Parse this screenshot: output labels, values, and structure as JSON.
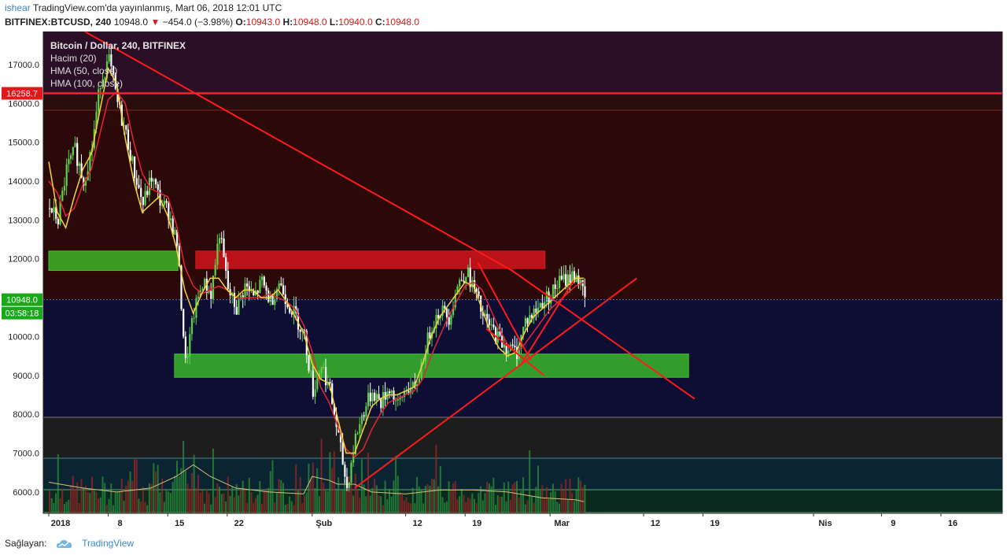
{
  "header": {
    "author": "ishear",
    "published": "TradingView.com'da yayınlanmış, Mart 06, 2018 12:01 UTC",
    "symbol": "BITFINEX:BTCUSD, 240",
    "last": "10948.0",
    "change": "−454.0 (−3.98%)",
    "o_label": "O:",
    "o_value": "10943.0",
    "h_label": "H:",
    "h_value": "10948.0",
    "l_label": "L:",
    "l_value": "10940.0",
    "c_label": "C:",
    "c_value": "10948.0"
  },
  "footer": {
    "label": "Sağlayan:",
    "brand": "TradingView"
  },
  "legend": {
    "title": "Bitcoin / Dollar, 240, BITFINEX",
    "volume": "Hacim (20)",
    "hma50": "HMA (50, close)",
    "hma100": "HMA (100, close)"
  },
  "colors": {
    "up": "#5fd04a",
    "down": "#ffffff",
    "hma50": "#f5d33a",
    "hma100": "#e32636",
    "trend": "#ff1a1a",
    "green_zone": "#3ec12b",
    "red_zone": "#e0141e"
  },
  "chart_data": {
    "type": "line",
    "title": "Bitcoin / Dollar, 240, BITFINEX",
    "xlabel": "",
    "ylabel": "",
    "ylim": [
      5450,
      17850
    ],
    "y_ticks": [
      "6000.0",
      "7000.0",
      "8000.0",
      "9000.0",
      "10000.0",
      "11000.0",
      "12000.0",
      "13000.0",
      "14000.0",
      "15000.0",
      "16000.0",
      "17000.0"
    ],
    "x_ticks": [
      {
        "label": "2018",
        "x": 0
      },
      {
        "label": "8",
        "x": 7
      },
      {
        "label": "15",
        "x": 14
      },
      {
        "label": "22",
        "x": 21
      },
      {
        "label": "Şub",
        "x": 31
      },
      {
        "label": "12",
        "x": 42
      },
      {
        "label": "19",
        "x": 49
      },
      {
        "label": "Mar",
        "x": 59
      },
      {
        "label": "12",
        "x": 70
      },
      {
        "label": "19",
        "x": 77
      },
      {
        "label": "Nis",
        "x": 90
      },
      {
        "label": "9",
        "x": 98
      },
      {
        "label": "16",
        "x": 105
      }
    ],
    "price_keypoints": [
      [
        0,
        13300
      ],
      [
        1,
        13000
      ],
      [
        2,
        14300
      ],
      [
        3,
        14800
      ],
      [
        4,
        14000
      ],
      [
        5,
        14900
      ],
      [
        6,
        16600
      ],
      [
        7,
        17100
      ],
      [
        8,
        16000
      ],
      [
        9,
        15200
      ],
      [
        10,
        14200
      ],
      [
        11,
        13400
      ],
      [
        12,
        14100
      ],
      [
        13,
        13500
      ],
      [
        14,
        13200
      ],
      [
        15,
        12400
      ],
      [
        16,
        9300
      ],
      [
        17,
        10600
      ],
      [
        18,
        11400
      ],
      [
        19,
        11100
      ],
      [
        20,
        12700
      ],
      [
        21,
        11200
      ],
      [
        22,
        10700
      ],
      [
        23,
        11300
      ],
      [
        24,
        11000
      ],
      [
        25,
        11400
      ],
      [
        26,
        10900
      ],
      [
        27,
        11400
      ],
      [
        28,
        10900
      ],
      [
        29,
        10500
      ],
      [
        30,
        10000
      ],
      [
        31,
        8600
      ],
      [
        32,
        9300
      ],
      [
        33,
        8600
      ],
      [
        34,
        7400
      ],
      [
        35,
        6100
      ],
      [
        36,
        7400
      ],
      [
        37,
        8100
      ],
      [
        38,
        8600
      ],
      [
        39,
        8300
      ],
      [
        40,
        8700
      ],
      [
        41,
        8200
      ],
      [
        42,
        8700
      ],
      [
        43,
        8600
      ],
      [
        44,
        9500
      ],
      [
        45,
        10300
      ],
      [
        46,
        10700
      ],
      [
        47,
        10500
      ],
      [
        48,
        11300
      ],
      [
        49,
        11700
      ],
      [
        50,
        11200
      ],
      [
        51,
        10500
      ],
      [
        52,
        10200
      ],
      [
        53,
        9900
      ],
      [
        54,
        9700
      ],
      [
        55,
        9600
      ],
      [
        56,
        10400
      ],
      [
        57,
        10600
      ],
      [
        58,
        10900
      ],
      [
        59,
        11100
      ],
      [
        60,
        11400
      ],
      [
        61,
        11500
      ],
      [
        62,
        11600
      ],
      [
        63,
        10948
      ]
    ],
    "hma50_keypoints": [
      [
        0,
        14500
      ],
      [
        1,
        13200
      ],
      [
        2,
        12800
      ],
      [
        3,
        13600
      ],
      [
        4,
        14300
      ],
      [
        5,
        14700
      ],
      [
        6,
        15800
      ],
      [
        7,
        16900
      ],
      [
        8,
        16500
      ],
      [
        9,
        15100
      ],
      [
        10,
        14000
      ],
      [
        11,
        13200
      ],
      [
        12,
        13400
      ],
      [
        13,
        13600
      ],
      [
        14,
        13100
      ],
      [
        15,
        12300
      ],
      [
        16,
        11200
      ],
      [
        17,
        10600
      ],
      [
        18,
        11100
      ],
      [
        19,
        11500
      ],
      [
        20,
        11500
      ],
      [
        21,
        11200
      ],
      [
        22,
        11000
      ],
      [
        23,
        11200
      ],
      [
        24,
        11200
      ],
      [
        25,
        11000
      ],
      [
        26,
        11000
      ],
      [
        27,
        11200
      ],
      [
        28,
        10900
      ],
      [
        29,
        10500
      ],
      [
        30,
        10100
      ],
      [
        31,
        9300
      ],
      [
        32,
        8900
      ],
      [
        33,
        8800
      ],
      [
        34,
        7900
      ],
      [
        35,
        7000
      ],
      [
        36,
        7000
      ],
      [
        37,
        7600
      ],
      [
        38,
        8200
      ],
      [
        39,
        8400
      ],
      [
        40,
        8500
      ],
      [
        41,
        8500
      ],
      [
        42,
        8600
      ],
      [
        43,
        8700
      ],
      [
        44,
        9300
      ],
      [
        45,
        10000
      ],
      [
        46,
        10500
      ],
      [
        47,
        10800
      ],
      [
        48,
        11100
      ],
      [
        49,
        11400
      ],
      [
        50,
        11300
      ],
      [
        51,
        10700
      ],
      [
        52,
        10100
      ],
      [
        53,
        9700
      ],
      [
        54,
        9500
      ],
      [
        55,
        9600
      ],
      [
        56,
        10100
      ],
      [
        57,
        10500
      ],
      [
        58,
        10700
      ],
      [
        59,
        10900
      ],
      [
        60,
        11100
      ],
      [
        61,
        11300
      ],
      [
        62,
        11500
      ],
      [
        63,
        11500
      ]
    ],
    "hma100_keypoints": [
      [
        0,
        14000
      ],
      [
        1,
        13700
      ],
      [
        2,
        13100
      ],
      [
        3,
        13300
      ],
      [
        4,
        13900
      ],
      [
        5,
        14300
      ],
      [
        6,
        15200
      ],
      [
        7,
        16100
      ],
      [
        8,
        16300
      ],
      [
        9,
        16000
      ],
      [
        10,
        15000
      ],
      [
        11,
        14200
      ],
      [
        12,
        13800
      ],
      [
        13,
        13700
      ],
      [
        14,
        13600
      ],
      [
        15,
        12900
      ],
      [
        16,
        11800
      ],
      [
        17,
        11300
      ],
      [
        18,
        11100
      ],
      [
        19,
        11200
      ],
      [
        20,
        11300
      ],
      [
        21,
        11200
      ],
      [
        22,
        11000
      ],
      [
        23,
        11000
      ],
      [
        24,
        11000
      ],
      [
        25,
        11000
      ],
      [
        26,
        11100
      ],
      [
        27,
        11000
      ],
      [
        28,
        10900
      ],
      [
        29,
        10700
      ],
      [
        30,
        10300
      ],
      [
        31,
        9600
      ],
      [
        32,
        8700
      ],
      [
        33,
        8300
      ],
      [
        34,
        7700
      ],
      [
        35,
        7100
      ],
      [
        36,
        6900
      ],
      [
        37,
        7100
      ],
      [
        38,
        7600
      ],
      [
        39,
        8000
      ],
      [
        40,
        8300
      ],
      [
        41,
        8400
      ],
      [
        42,
        8500
      ],
      [
        43,
        8600
      ],
      [
        44,
        8900
      ],
      [
        45,
        9500
      ],
      [
        46,
        10000
      ],
      [
        47,
        10500
      ],
      [
        48,
        10900
      ],
      [
        49,
        11300
      ],
      [
        50,
        11400
      ],
      [
        51,
        11200
      ],
      [
        52,
        10700
      ],
      [
        53,
        10200
      ],
      [
        54,
        9800
      ],
      [
        55,
        9600
      ],
      [
        56,
        9800
      ],
      [
        57,
        10100
      ],
      [
        58,
        10400
      ],
      [
        59,
        10700
      ],
      [
        60,
        10900
      ],
      [
        61,
        11100
      ],
      [
        62,
        11300
      ],
      [
        63,
        11400
      ]
    ],
    "horizontal_levels": [
      {
        "price": 16258.7,
        "label": "16258.7",
        "color": "#ff2020"
      },
      {
        "price": 10948.0,
        "label": "10948.0",
        "color": "#3a6fd8"
      }
    ],
    "countdown_label": "03:58:18",
    "zones": [
      {
        "x0": 0,
        "x1": 15.2,
        "y0": 11700,
        "y1": 12200,
        "color": "#3ec12b"
      },
      {
        "x0": 17.3,
        "x1": 58.4,
        "y0": 11750,
        "y1": 12200,
        "color": "#e0141e"
      },
      {
        "x0": 14.8,
        "x1": 75.3,
        "y0": 8950,
        "y1": 9550,
        "color": "#3ec12b"
      }
    ],
    "trend_lines": [
      {
        "points": [
          [
            3,
            18000
          ],
          [
            54.5,
            11700
          ],
          [
            76,
            8400
          ]
        ]
      },
      {
        "points": [
          [
            36,
            6100
          ],
          [
            69.2,
            11500
          ]
        ]
      },
      {
        "points": [
          [
            51.5,
            10200
          ],
          [
            58.3,
            9000
          ]
        ]
      },
      {
        "points": [
          [
            50.5,
            11900
          ],
          [
            56.7,
            9400
          ]
        ]
      },
      {
        "points": [
          [
            55.5,
            9250
          ],
          [
            61.8,
            11450
          ]
        ]
      }
    ],
    "volume_ma_keypoints": [
      [
        0,
        6250
      ],
      [
        4,
        6100
      ],
      [
        8,
        6000
      ],
      [
        12,
        6100
      ],
      [
        15,
        6400
      ],
      [
        17,
        6700
      ],
      [
        19,
        6400
      ],
      [
        22,
        6100
      ],
      [
        26,
        6000
      ],
      [
        30,
        5950
      ],
      [
        31,
        6400
      ],
      [
        33,
        6300
      ],
      [
        34,
        6200
      ],
      [
        36,
        6200
      ],
      [
        38,
        6000
      ],
      [
        42,
        5950
      ],
      [
        46,
        6050
      ],
      [
        50,
        6050
      ],
      [
        54,
        6000
      ],
      [
        58,
        5850
      ],
      [
        62,
        5800
      ],
      [
        63,
        5750
      ]
    ]
  }
}
